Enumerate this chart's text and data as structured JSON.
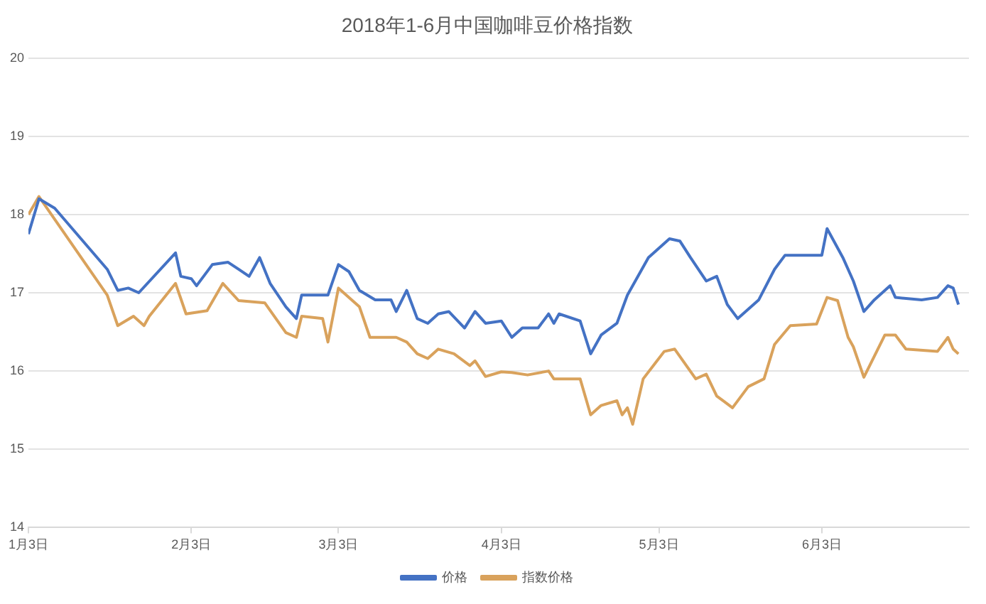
{
  "chart_data": {
    "type": "line",
    "title": "2018年1-6月中国咖啡豆价格指数",
    "xlim": [
      "2018-01-03",
      "2018-07-01"
    ],
    "xticks": [
      {
        "value": "2018-01-03",
        "label": "1月3日"
      },
      {
        "value": "2018-02-03",
        "label": "2月3日"
      },
      {
        "value": "2018-03-03",
        "label": "3月3日"
      },
      {
        "value": "2018-04-03",
        "label": "4月3日"
      },
      {
        "value": "2018-05-03",
        "label": "5月3日"
      },
      {
        "value": "2018-06-03",
        "label": "6月3日"
      }
    ],
    "ylim": [
      14,
      20
    ],
    "yticks": [
      14,
      15,
      16,
      17,
      18,
      19,
      20
    ],
    "grid": "y",
    "legend": "bottom",
    "marker": "none",
    "series": [
      {
        "name": "价格",
        "color": "#4472c4",
        "x": [
          "2018-01-03",
          "2018-01-05",
          "2018-01-08",
          "2018-01-18",
          "2018-01-20",
          "2018-01-22",
          "2018-01-24",
          "2018-01-31",
          "2018-02-01",
          "2018-02-03",
          "2018-02-04",
          "2018-02-07",
          "2018-02-10",
          "2018-02-12",
          "2018-02-14",
          "2018-02-16",
          "2018-02-18",
          "2018-02-21",
          "2018-02-23",
          "2018-02-24",
          "2018-03-01",
          "2018-03-03",
          "2018-03-05",
          "2018-03-07",
          "2018-03-10",
          "2018-03-13",
          "2018-03-14",
          "2018-03-16",
          "2018-03-18",
          "2018-03-20",
          "2018-03-22",
          "2018-03-24",
          "2018-03-27",
          "2018-03-29",
          "2018-03-31",
          "2018-04-03",
          "2018-04-05",
          "2018-04-07",
          "2018-04-10",
          "2018-04-12",
          "2018-04-13",
          "2018-04-14",
          "2018-04-18",
          "2018-04-20",
          "2018-04-22",
          "2018-04-25",
          "2018-04-27",
          "2018-05-01",
          "2018-05-05",
          "2018-05-07",
          "2018-05-09",
          "2018-05-12",
          "2018-05-14",
          "2018-05-16",
          "2018-05-18",
          "2018-05-22",
          "2018-05-25",
          "2018-05-27",
          "2018-06-03",
          "2018-06-04",
          "2018-06-07",
          "2018-06-09",
          "2018-06-11",
          "2018-06-13",
          "2018-06-16",
          "2018-06-17",
          "2018-06-22",
          "2018-06-25",
          "2018-06-27",
          "2018-06-28",
          "2018-06-29"
        ],
        "values": [
          17.75,
          18.2,
          18.08,
          17.3,
          17.03,
          17.06,
          17.0,
          17.51,
          17.21,
          17.18,
          17.09,
          17.36,
          17.39,
          17.3,
          17.21,
          17.45,
          17.12,
          16.82,
          16.67,
          16.97,
          16.97,
          17.36,
          17.27,
          17.03,
          16.91,
          16.91,
          16.76,
          17.03,
          16.67,
          16.61,
          16.73,
          16.76,
          16.55,
          16.76,
          16.61,
          16.64,
          16.43,
          16.55,
          16.55,
          16.73,
          16.61,
          16.73,
          16.64,
          16.22,
          16.46,
          16.61,
          16.97,
          17.45,
          17.69,
          17.66,
          17.45,
          17.15,
          17.21,
          16.85,
          16.67,
          16.91,
          17.3,
          17.48,
          17.48,
          17.82,
          17.45,
          17.15,
          16.76,
          16.91,
          17.09,
          16.94,
          16.91,
          16.94,
          17.09,
          17.06,
          16.85
        ]
      },
      {
        "name": "指数价格",
        "color": "#d9a25c",
        "x": [
          "2018-01-03",
          "2018-01-05",
          "2018-01-18",
          "2018-01-20",
          "2018-01-23",
          "2018-01-25",
          "2018-01-26",
          "2018-01-31",
          "2018-02-02",
          "2018-02-06",
          "2018-02-09",
          "2018-02-12",
          "2018-02-17",
          "2018-02-21",
          "2018-02-23",
          "2018-02-24",
          "2018-02-28",
          "2018-03-01",
          "2018-03-03",
          "2018-03-07",
          "2018-03-09",
          "2018-03-14",
          "2018-03-16",
          "2018-03-18",
          "2018-03-20",
          "2018-03-22",
          "2018-03-25",
          "2018-03-28",
          "2018-03-29",
          "2018-03-31",
          "2018-04-03",
          "2018-04-05",
          "2018-04-08",
          "2018-04-12",
          "2018-04-13",
          "2018-04-18",
          "2018-04-20",
          "2018-04-22",
          "2018-04-25",
          "2018-04-26",
          "2018-04-27",
          "2018-04-28",
          "2018-04-30",
          "2018-05-04",
          "2018-05-06",
          "2018-05-10",
          "2018-05-12",
          "2018-05-14",
          "2018-05-17",
          "2018-05-20",
          "2018-05-23",
          "2018-05-25",
          "2018-05-28",
          "2018-06-02",
          "2018-06-04",
          "2018-06-06",
          "2018-06-08",
          "2018-06-09",
          "2018-06-11",
          "2018-06-15",
          "2018-06-17",
          "2018-06-19",
          "2018-06-25",
          "2018-06-27",
          "2018-06-28",
          "2018-06-29"
        ],
        "values": [
          18.0,
          18.23,
          16.97,
          16.58,
          16.7,
          16.58,
          16.7,
          17.12,
          16.73,
          16.77,
          17.12,
          16.9,
          16.87,
          16.49,
          16.43,
          16.7,
          16.67,
          16.37,
          17.06,
          16.82,
          16.43,
          16.43,
          16.37,
          16.22,
          16.16,
          16.28,
          16.22,
          16.07,
          16.13,
          15.93,
          15.99,
          15.98,
          15.95,
          16.0,
          15.9,
          15.9,
          15.44,
          15.56,
          15.62,
          15.44,
          15.53,
          15.32,
          15.9,
          16.25,
          16.28,
          15.9,
          15.96,
          15.68,
          15.53,
          15.8,
          15.9,
          16.34,
          16.58,
          16.6,
          16.94,
          16.9,
          16.43,
          16.31,
          15.92,
          16.46,
          16.46,
          16.28,
          16.25,
          16.43,
          16.28,
          16.22
        ]
      }
    ]
  }
}
